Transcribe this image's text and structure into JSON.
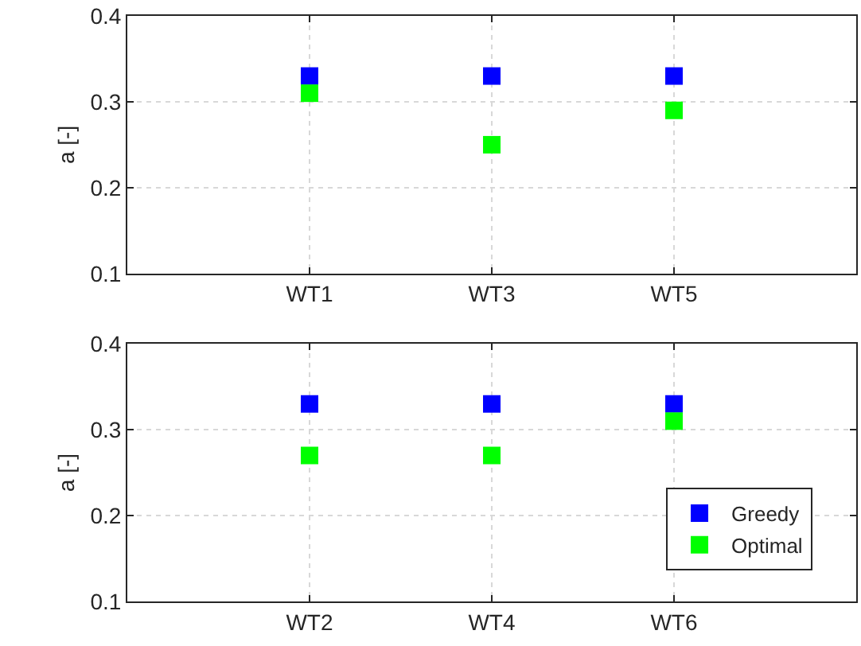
{
  "chart_data": [
    {
      "type": "scatter",
      "ylabel": "a [-]",
      "categories": [
        null,
        "WT1",
        "WT3",
        "WT5",
        null
      ],
      "ylim": [
        0.1,
        0.4
      ],
      "yticks": [
        0.1,
        0.2,
        0.3,
        0.4
      ],
      "grid": true,
      "marker": "square",
      "legend": false,
      "series": [
        {
          "color": "#0000ff",
          "values": [
            null,
            0.33,
            0.33,
            0.33,
            null
          ]
        },
        {
          "color": "#00ff00",
          "values": [
            null,
            0.31,
            0.25,
            0.29,
            null
          ]
        }
      ]
    },
    {
      "type": "scatter",
      "ylabel": "a [-]",
      "categories": [
        null,
        "WT2",
        "WT4",
        "WT6",
        null
      ],
      "ylim": [
        0.1,
        0.4
      ],
      "yticks": [
        0.1,
        0.2,
        0.3,
        0.4
      ],
      "grid": true,
      "marker": "square",
      "legend": "bottom right",
      "series": [
        {
          "name": "Greedy",
          "color": "#0000ff",
          "values": [
            null,
            0.33,
            0.33,
            0.33,
            null
          ]
        },
        {
          "name": "Optimal",
          "color": "#00ff00",
          "values": [
            null,
            0.27,
            0.27,
            0.31,
            null
          ]
        }
      ]
    }
  ]
}
